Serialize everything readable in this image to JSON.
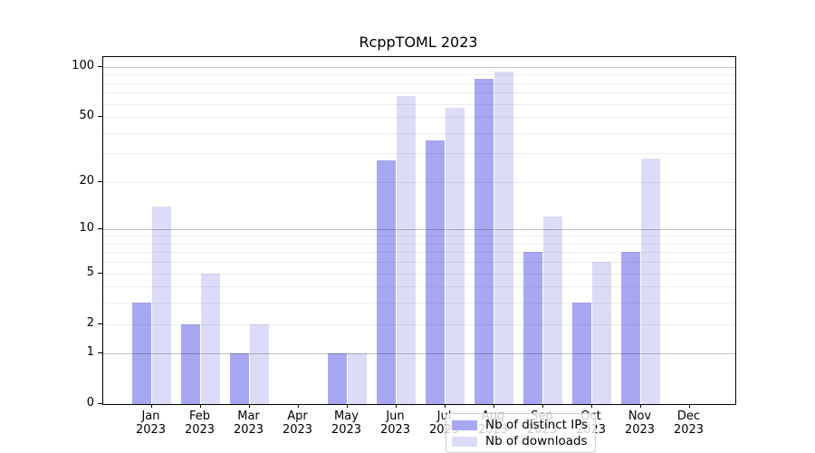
{
  "title": "RcppTOML 2023",
  "chart_data": {
    "type": "bar",
    "title": "RcppTOML 2023",
    "categories": [
      "Jan",
      "Feb",
      "Mar",
      "Apr",
      "May",
      "Jun",
      "Jul",
      "Aug",
      "Sep",
      "Oct",
      "Nov",
      "Dec"
    ],
    "year_label": "2023",
    "series": [
      {
        "name": "Nb of distinct IPs",
        "key": "distinct-ips",
        "color": "#a8a8f2",
        "values": [
          3,
          2,
          1,
          0,
          1,
          27,
          36,
          85,
          7,
          3,
          7,
          0
        ]
      },
      {
        "name": "Nb of downloads",
        "key": "downloads",
        "color": "#dcdcf8",
        "values": [
          14,
          5,
          2,
          0,
          1,
          67,
          57,
          94,
          12,
          6,
          28,
          0
        ]
      }
    ],
    "xlabel": "",
    "ylabel": "",
    "yscale": "log1p",
    "ylim": [
      0,
      115
    ],
    "y_tick_labels": [
      "0",
      "1",
      "2",
      "5",
      "10",
      "20",
      "50",
      "100"
    ],
    "y_tick_values": [
      0,
      1,
      2,
      5,
      10,
      20,
      50,
      100
    ],
    "y_major_gridlines": [
      1,
      10,
      100
    ],
    "y_minor_gridlines": [
      2,
      3,
      4,
      5,
      6,
      7,
      8,
      9,
      20,
      30,
      40,
      50,
      60,
      70,
      80,
      90
    ],
    "grid": true,
    "legend_position": "inside-bottom-center"
  },
  "colors": {
    "distinct_ips_bar": "#a8a8f2",
    "downloads_bar": "#dcdcf8",
    "axis": "#000000",
    "major_grid": "#c3c3c3",
    "minor_grid": "#ececec",
    "legend_border": "#cccccc"
  }
}
